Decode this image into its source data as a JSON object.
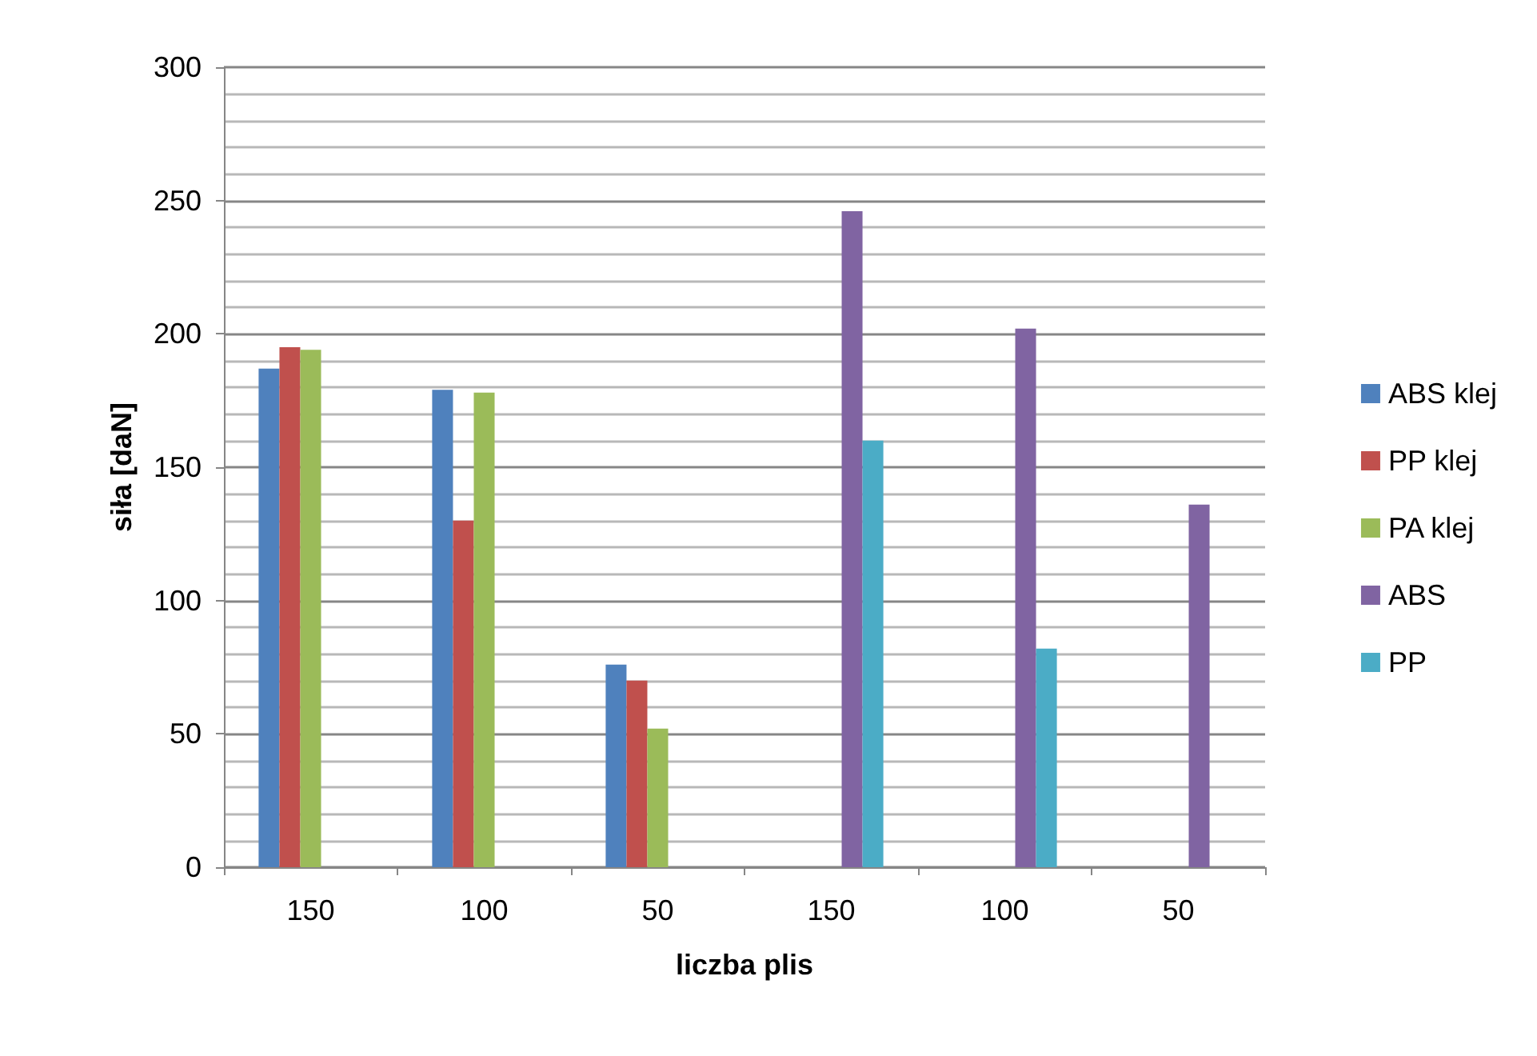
{
  "chart_data": {
    "type": "bar",
    "xlabel": "liczba plis",
    "ylabel": "siła [daN]",
    "categories": [
      "150",
      "100",
      "50",
      "150",
      "100",
      "50"
    ],
    "series": [
      {
        "name": "ABS klej",
        "color": "#4f81bd",
        "values": [
          187,
          179,
          76,
          null,
          null,
          null
        ]
      },
      {
        "name": "PP klej",
        "color": "#c0504d",
        "values": [
          195,
          130,
          70,
          null,
          null,
          null
        ]
      },
      {
        "name": "PA klej",
        "color": "#9bbb59",
        "values": [
          194,
          178,
          52,
          null,
          null,
          null
        ]
      },
      {
        "name": "ABS",
        "color": "#8064a2",
        "values": [
          null,
          null,
          null,
          246,
          202,
          136
        ]
      },
      {
        "name": "PP",
        "color": "#4bacc6",
        "values": [
          null,
          null,
          null,
          160,
          82,
          null
        ]
      }
    ],
    "ylim": [
      0,
      300
    ],
    "yticks": [
      0,
      50,
      100,
      150,
      200,
      250,
      300
    ],
    "grid": "y",
    "legend": "right"
  }
}
